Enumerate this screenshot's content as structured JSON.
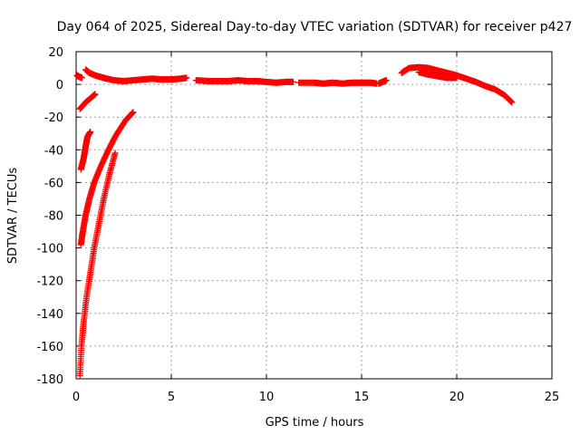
{
  "chart_data": {
    "type": "scatter",
    "title": "Day 064 of 2025, Sidereal Day-to-day VTEC variation (SDTVAR) for receiver p427",
    "xlabel": "GPS time / hours",
    "ylabel": "SDTVAR / TECUs",
    "xlim": [
      0,
      25
    ],
    "ylim": [
      -180,
      20
    ],
    "xticks": [
      0,
      5,
      10,
      15,
      20,
      25
    ],
    "yticks": [
      20,
      0,
      -20,
      -40,
      -60,
      -80,
      -100,
      -120,
      -140,
      -160,
      -180
    ],
    "grid": true,
    "marker": "+",
    "color": "#ff0000",
    "series": [
      {
        "name": "arc-start",
        "points": [
          [
            0.05,
            5.5
          ],
          [
            0.1,
            5
          ],
          [
            0.2,
            4.5
          ],
          [
            0.3,
            4
          ]
        ]
      },
      {
        "name": "main-band-a",
        "points": [
          [
            0.5,
            9
          ],
          [
            0.7,
            7
          ],
          [
            1.0,
            5.5
          ],
          [
            1.3,
            4.5
          ],
          [
            1.6,
            3.5
          ],
          [
            2.0,
            2.5
          ],
          [
            2.5,
            2
          ],
          [
            3.0,
            2.5
          ],
          [
            3.5,
            3
          ],
          [
            4.0,
            3.5
          ],
          [
            4.5,
            3
          ],
          [
            5.0,
            3
          ],
          [
            5.5,
            3.5
          ],
          [
            5.8,
            4
          ]
        ]
      },
      {
        "name": "main-band-b",
        "points": [
          [
            6.3,
            2.5
          ],
          [
            7.0,
            2
          ],
          [
            7.5,
            2
          ],
          [
            8.0,
            2
          ],
          [
            8.5,
            2.5
          ],
          [
            9.0,
            2
          ],
          [
            9.5,
            2
          ],
          [
            10.0,
            1.5
          ],
          [
            10.5,
            1
          ],
          [
            11.0,
            1.5
          ],
          [
            11.4,
            1.5
          ]
        ]
      },
      {
        "name": "main-band-c",
        "points": [
          [
            11.7,
            1
          ],
          [
            12.5,
            1
          ],
          [
            13.0,
            0.5
          ],
          [
            13.5,
            1
          ],
          [
            14.0,
            0.5
          ],
          [
            14.5,
            1
          ],
          [
            15.0,
            1
          ],
          [
            15.5,
            1
          ],
          [
            15.8,
            0.5
          ]
        ]
      },
      {
        "name": "main-band-d",
        "points": [
          [
            15.9,
            0.5
          ],
          [
            16.1,
            1.5
          ],
          [
            16.3,
            2.5
          ]
        ]
      },
      {
        "name": "evening-arc",
        "points": [
          [
            17.1,
            7
          ],
          [
            17.5,
            10
          ],
          [
            18.0,
            10.5
          ],
          [
            18.5,
            10
          ],
          [
            19.0,
            8.5
          ],
          [
            19.5,
            7
          ],
          [
            20.0,
            5.5
          ],
          [
            20.5,
            3.5
          ],
          [
            21.0,
            1.5
          ],
          [
            21.5,
            -1
          ],
          [
            22.0,
            -3
          ],
          [
            22.5,
            -6.5
          ],
          [
            22.9,
            -11
          ]
        ]
      },
      {
        "name": "evening-arc-lower",
        "points": [
          [
            18.0,
            7.5
          ],
          [
            18.5,
            6
          ],
          [
            19.0,
            5
          ],
          [
            19.5,
            4
          ],
          [
            20.0,
            4
          ]
        ]
      },
      {
        "name": "descent-1",
        "points": [
          [
            0.2,
            -15
          ],
          [
            0.5,
            -11
          ],
          [
            0.8,
            -8
          ],
          [
            1.0,
            -6
          ]
        ]
      },
      {
        "name": "descent-2",
        "points": [
          [
            0.25,
            -52
          ],
          [
            0.4,
            -45
          ],
          [
            0.5,
            -38
          ],
          [
            0.6,
            -32
          ],
          [
            0.75,
            -29
          ]
        ]
      },
      {
        "name": "descent-3",
        "points": [
          [
            0.25,
            -98
          ],
          [
            0.35,
            -90
          ],
          [
            0.5,
            -80
          ],
          [
            0.7,
            -70
          ],
          [
            0.95,
            -60
          ],
          [
            1.3,
            -50
          ],
          [
            1.7,
            -40
          ],
          [
            2.1,
            -31
          ],
          [
            2.6,
            -22
          ],
          [
            3.0,
            -17
          ]
        ]
      },
      {
        "name": "descent-4",
        "points": [
          [
            0.2,
            -178
          ],
          [
            0.28,
            -160
          ],
          [
            0.4,
            -145
          ],
          [
            0.55,
            -130
          ],
          [
            0.75,
            -115
          ],
          [
            0.95,
            -100
          ],
          [
            1.2,
            -85
          ],
          [
            1.45,
            -70
          ],
          [
            1.75,
            -55
          ],
          [
            2.05,
            -42
          ]
        ]
      }
    ]
  }
}
